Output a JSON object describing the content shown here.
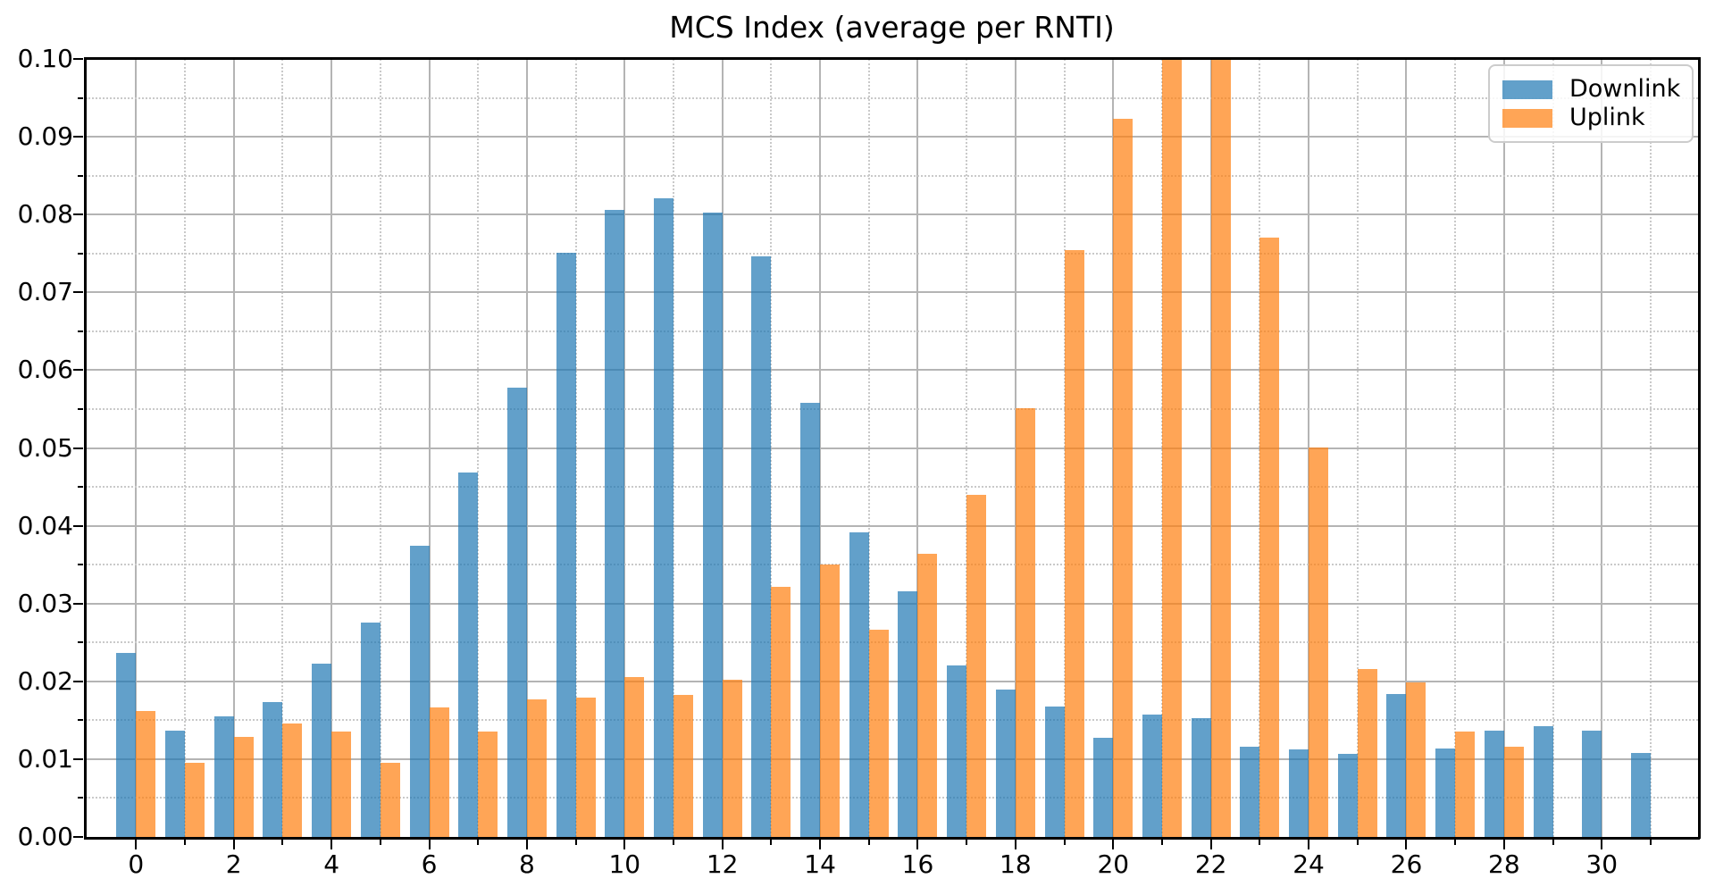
{
  "title": "MCS Index (average per RNTI)",
  "legend": {
    "position": "upper right",
    "items": [
      {
        "label": "Downlink",
        "color": "#1f77b4"
      },
      {
        "label": "Uplink",
        "color": "#ff7f0e"
      }
    ]
  },
  "chart_data": {
    "type": "bar",
    "title": "MCS Index (average per RNTI)",
    "xlabel": "",
    "ylabel": "",
    "categories": [
      0,
      1,
      2,
      3,
      4,
      5,
      6,
      7,
      8,
      9,
      10,
      11,
      12,
      13,
      14,
      15,
      16,
      17,
      18,
      19,
      20,
      21,
      22,
      23,
      24,
      25,
      26,
      27,
      28,
      29,
      30,
      31
    ],
    "series": [
      {
        "name": "Downlink",
        "color": "#1f77b4",
        "alpha": 0.7,
        "values": [
          0.0236,
          0.0137,
          0.0155,
          0.0173,
          0.0223,
          0.0276,
          0.0374,
          0.0468,
          0.0577,
          0.0751,
          0.0806,
          0.0821,
          0.0802,
          0.0746,
          0.0558,
          0.0391,
          0.0316,
          0.0221,
          0.0189,
          0.0168,
          0.0127,
          0.0157,
          0.0153,
          0.0116,
          0.0113,
          0.0107,
          0.0184,
          0.0114,
          0.0137,
          0.0142,
          0.0137,
          0.0108
        ]
      },
      {
        "name": "Uplink",
        "color": "#ff7f0e",
        "alpha": 0.7,
        "values": [
          0.0162,
          0.0095,
          0.0129,
          0.0146,
          0.0136,
          0.0095,
          0.0166,
          0.0135,
          0.0177,
          0.0179,
          0.0206,
          0.0183,
          0.0202,
          0.0321,
          0.035,
          0.0266,
          0.0364,
          0.044,
          0.0551,
          0.0754,
          0.0923,
          0.1,
          0.1,
          0.077,
          0.0501,
          0.0216,
          0.0199,
          0.0136,
          0.0116,
          0,
          0,
          0
        ]
      }
    ],
    "ylim": [
      0,
      0.1
    ],
    "xlim": [
      -1.03,
      31.97
    ],
    "y_tick_labels": [
      "0.00",
      "0.01",
      "0.02",
      "0.03",
      "0.04",
      "0.05",
      "0.06",
      "0.07",
      "0.08",
      "0.09",
      "0.10"
    ],
    "x_tick_labels": [
      "0",
      "2",
      "4",
      "6",
      "8",
      "10",
      "12",
      "14",
      "16",
      "18",
      "20",
      "22",
      "24",
      "26",
      "28",
      "30"
    ],
    "x_major_tick_values": [
      0,
      2,
      4,
      6,
      8,
      10,
      12,
      14,
      16,
      18,
      20,
      22,
      24,
      26,
      28,
      30
    ],
    "x_minor_tick_values": [
      1,
      3,
      5,
      7,
      9,
      11,
      13,
      15,
      17,
      19,
      21,
      23,
      25,
      27,
      29,
      31
    ],
    "y_major_tick_step": 0.01,
    "y_minor_tick_step": 0.005,
    "grid": {
      "major": "solid",
      "minor": "dotted"
    },
    "legend_position": "upper right",
    "notes": "Uplink bars at MCS 21 and 22 reach the top of the y-axis (clipped at 0.10)"
  }
}
